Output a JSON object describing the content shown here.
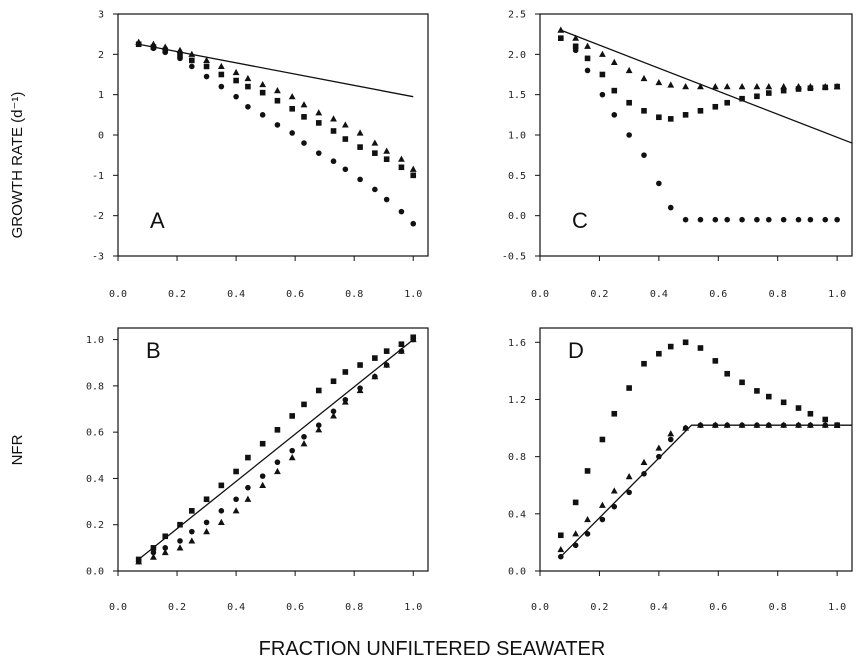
{
  "figure": {
    "ylabel_top": "GROWTH RATE (d⁻¹)",
    "ylabel_bottom": "NFR",
    "xlabel": "FRACTION UNFILTERED SEAWATER"
  },
  "chart_data": [
    {
      "type": "scatter",
      "panel": "A",
      "label": "A",
      "xlim": [
        0.0,
        1.05
      ],
      "ylim": [
        -3.0,
        3.0
      ],
      "xticks": [
        "0.0",
        "0.2",
        "0.4",
        "0.6",
        "0.8",
        "1.0"
      ],
      "xtick_values": [
        0.0,
        0.2,
        0.4,
        0.6,
        0.8,
        1.0
      ],
      "yticks": [
        "3",
        "2",
        "1",
        "0",
        "-1",
        "-2",
        "-3"
      ],
      "ytick_values": [
        3,
        2,
        1,
        0,
        -1,
        -2,
        -3
      ],
      "line": {
        "x": [
          0.07,
          1.0
        ],
        "y": [
          2.25,
          0.95
        ]
      },
      "series": [
        {
          "marker": "circle",
          "x": [
            0.07,
            0.12,
            0.16,
            0.21,
            0.25,
            0.3,
            0.35,
            0.4,
            0.44,
            0.49,
            0.54,
            0.59,
            0.63,
            0.68,
            0.73,
            0.77,
            0.82,
            0.87,
            0.91,
            0.96,
            1.0
          ],
          "y": [
            2.25,
            2.15,
            2.05,
            1.9,
            1.7,
            1.45,
            1.2,
            0.95,
            0.7,
            0.5,
            0.25,
            0.05,
            -0.2,
            -0.45,
            -0.65,
            -0.85,
            -1.1,
            -1.35,
            -1.6,
            -1.9,
            -2.2
          ]
        },
        {
          "marker": "square",
          "x": [
            0.07,
            0.12,
            0.16,
            0.21,
            0.25,
            0.3,
            0.35,
            0.4,
            0.44,
            0.49,
            0.54,
            0.59,
            0.63,
            0.68,
            0.73,
            0.77,
            0.82,
            0.87,
            0.91,
            0.96,
            1.0
          ],
          "y": [
            2.25,
            2.18,
            2.1,
            1.98,
            1.85,
            1.7,
            1.5,
            1.35,
            1.2,
            1.05,
            0.85,
            0.65,
            0.45,
            0.3,
            0.1,
            -0.1,
            -0.3,
            -0.45,
            -0.6,
            -0.8,
            -1.0
          ]
        },
        {
          "marker": "triangle",
          "x": [
            0.07,
            0.12,
            0.16,
            0.21,
            0.25,
            0.3,
            0.35,
            0.4,
            0.44,
            0.49,
            0.54,
            0.59,
            0.63,
            0.68,
            0.73,
            0.77,
            0.82,
            0.87,
            0.91,
            0.96,
            1.0
          ],
          "y": [
            2.3,
            2.25,
            2.18,
            2.1,
            2.0,
            1.85,
            1.7,
            1.55,
            1.4,
            1.25,
            1.1,
            0.95,
            0.75,
            0.55,
            0.4,
            0.25,
            0.05,
            -0.2,
            -0.4,
            -0.6,
            -0.85
          ]
        }
      ]
    },
    {
      "type": "scatter",
      "panel": "C",
      "label": "C",
      "xlim": [
        0.0,
        1.05
      ],
      "ylim": [
        -0.5,
        2.5
      ],
      "xticks": [
        "0.0",
        "0.2",
        "0.4",
        "0.6",
        "0.8",
        "1.0"
      ],
      "xtick_values": [
        0.0,
        0.2,
        0.4,
        0.6,
        0.8,
        1.0
      ],
      "yticks": [
        "2.5",
        "2.0",
        "1.5",
        "1.0",
        "0.5",
        "0.0",
        "-0.5"
      ],
      "ytick_values": [
        2.5,
        2.0,
        1.5,
        1.0,
        0.5,
        0.0,
        -0.5
      ],
      "line": {
        "x": [
          0.07,
          1.05
        ],
        "y": [
          2.3,
          0.9
        ]
      },
      "series": [
        {
          "marker": "circle",
          "x": [
            0.07,
            0.12,
            0.16,
            0.21,
            0.25,
            0.3,
            0.35,
            0.4,
            0.44,
            0.49,
            0.54,
            0.59,
            0.63,
            0.68,
            0.73,
            0.77,
            0.82,
            0.87,
            0.91,
            0.96,
            1.0
          ],
          "y": [
            2.2,
            2.05,
            1.8,
            1.5,
            1.25,
            1.0,
            0.75,
            0.4,
            0.1,
            -0.05,
            -0.05,
            -0.05,
            -0.05,
            -0.05,
            -0.05,
            -0.05,
            -0.05,
            -0.05,
            -0.05,
            -0.05,
            -0.05
          ]
        },
        {
          "marker": "square",
          "x": [
            0.07,
            0.12,
            0.16,
            0.21,
            0.25,
            0.3,
            0.35,
            0.4,
            0.44,
            0.49,
            0.54,
            0.59,
            0.63,
            0.68,
            0.73,
            0.77,
            0.82,
            0.87,
            0.91,
            0.96,
            1.0
          ],
          "y": [
            2.2,
            2.1,
            1.95,
            1.75,
            1.55,
            1.4,
            1.3,
            1.22,
            1.2,
            1.25,
            1.3,
            1.35,
            1.4,
            1.45,
            1.48,
            1.52,
            1.55,
            1.57,
            1.58,
            1.59,
            1.6
          ]
        },
        {
          "marker": "triangle",
          "x": [
            0.07,
            0.12,
            0.16,
            0.21,
            0.25,
            0.3,
            0.35,
            0.4,
            0.44,
            0.49,
            0.54,
            0.59,
            0.63,
            0.68,
            0.73,
            0.77,
            0.82,
            0.87,
            0.91,
            0.96,
            1.0
          ],
          "y": [
            2.3,
            2.2,
            2.1,
            2.0,
            1.9,
            1.8,
            1.7,
            1.65,
            1.62,
            1.6,
            1.6,
            1.6,
            1.6,
            1.6,
            1.6,
            1.6,
            1.6,
            1.6,
            1.6,
            1.6,
            1.6
          ]
        }
      ]
    },
    {
      "type": "scatter",
      "panel": "B",
      "label": "B",
      "xlim": [
        0.0,
        1.05
      ],
      "ylim": [
        0.0,
        1.05
      ],
      "xticks": [
        "0.0",
        "0.2",
        "0.4",
        "0.6",
        "0.8",
        "1.0"
      ],
      "xtick_values": [
        0.0,
        0.2,
        0.4,
        0.6,
        0.8,
        1.0
      ],
      "yticks": [
        "1.0",
        "0.8",
        "0.6",
        "0.4",
        "0.2",
        "0.0"
      ],
      "ytick_values": [
        1.0,
        0.8,
        0.6,
        0.4,
        0.2,
        0.0
      ],
      "line": {
        "x": [
          0.07,
          1.0
        ],
        "y": [
          0.05,
          1.0
        ]
      },
      "series": [
        {
          "marker": "circle",
          "x": [
            0.07,
            0.12,
            0.16,
            0.21,
            0.25,
            0.3,
            0.35,
            0.4,
            0.44,
            0.49,
            0.54,
            0.59,
            0.63,
            0.68,
            0.73,
            0.77,
            0.82,
            0.87,
            0.91,
            0.96,
            1.0
          ],
          "y": [
            0.04,
            0.08,
            0.1,
            0.13,
            0.17,
            0.21,
            0.26,
            0.31,
            0.36,
            0.41,
            0.47,
            0.52,
            0.58,
            0.63,
            0.69,
            0.74,
            0.79,
            0.84,
            0.89,
            0.95,
            1.0
          ]
        },
        {
          "marker": "square",
          "x": [
            0.07,
            0.12,
            0.16,
            0.21,
            0.25,
            0.3,
            0.35,
            0.4,
            0.44,
            0.49,
            0.54,
            0.59,
            0.63,
            0.68,
            0.73,
            0.77,
            0.82,
            0.87,
            0.91,
            0.96,
            1.0
          ],
          "y": [
            0.05,
            0.1,
            0.15,
            0.2,
            0.26,
            0.31,
            0.37,
            0.43,
            0.49,
            0.55,
            0.61,
            0.67,
            0.72,
            0.78,
            0.82,
            0.86,
            0.89,
            0.92,
            0.95,
            0.98,
            1.01
          ]
        },
        {
          "marker": "triangle",
          "x": [
            0.07,
            0.12,
            0.16,
            0.21,
            0.25,
            0.3,
            0.35,
            0.4,
            0.44,
            0.49,
            0.54,
            0.59,
            0.63,
            0.68,
            0.73,
            0.77,
            0.82,
            0.87,
            0.91,
            0.96,
            1.0
          ],
          "y": [
            0.04,
            0.06,
            0.08,
            0.1,
            0.13,
            0.17,
            0.21,
            0.26,
            0.31,
            0.37,
            0.43,
            0.49,
            0.55,
            0.61,
            0.67,
            0.73,
            0.78,
            0.84,
            0.89,
            0.95,
            1.0
          ]
        }
      ]
    },
    {
      "type": "scatter",
      "panel": "D",
      "label": "D",
      "xlim": [
        0.0,
        1.05
      ],
      "ylim": [
        0.0,
        1.7
      ],
      "xticks": [
        "0.0",
        "0.2",
        "0.4",
        "0.6",
        "0.8",
        "1.0"
      ],
      "xtick_values": [
        0.0,
        0.2,
        0.4,
        0.6,
        0.8,
        1.0
      ],
      "yticks": [
        "1.6",
        "1.2",
        "0.8",
        "0.4",
        "0.0"
      ],
      "ytick_values": [
        1.6,
        1.2,
        0.8,
        0.4,
        0.0
      ],
      "line": {
        "x": [
          0.07,
          0.51,
          1.05
        ],
        "y": [
          0.1,
          1.02,
          1.02
        ]
      },
      "series": [
        {
          "marker": "circle",
          "x": [
            0.07,
            0.12,
            0.16,
            0.21,
            0.25,
            0.3,
            0.35,
            0.4,
            0.44,
            0.49,
            0.54,
            0.59,
            0.63,
            0.68,
            0.73,
            0.77,
            0.82,
            0.87,
            0.91,
            0.96,
            1.0
          ],
          "y": [
            0.1,
            0.18,
            0.26,
            0.36,
            0.45,
            0.55,
            0.68,
            0.8,
            0.92,
            1.0,
            1.02,
            1.02,
            1.02,
            1.02,
            1.02,
            1.02,
            1.02,
            1.02,
            1.02,
            1.02,
            1.02
          ]
        },
        {
          "marker": "square",
          "x": [
            0.07,
            0.12,
            0.16,
            0.21,
            0.25,
            0.3,
            0.35,
            0.4,
            0.44,
            0.49,
            0.54,
            0.59,
            0.63,
            0.68,
            0.73,
            0.77,
            0.82,
            0.87,
            0.91,
            0.96,
            1.0
          ],
          "y": [
            0.25,
            0.48,
            0.7,
            0.92,
            1.1,
            1.28,
            1.45,
            1.52,
            1.57,
            1.6,
            1.56,
            1.47,
            1.38,
            1.32,
            1.26,
            1.22,
            1.18,
            1.14,
            1.1,
            1.06,
            1.02
          ]
        },
        {
          "marker": "triangle",
          "x": [
            0.07,
            0.12,
            0.16,
            0.21,
            0.25,
            0.3,
            0.35,
            0.4,
            0.44,
            0.49,
            0.54,
            0.59,
            0.63,
            0.68,
            0.73,
            0.77,
            0.82,
            0.87,
            0.91,
            0.96,
            1.0
          ],
          "y": [
            0.15,
            0.26,
            0.36,
            0.46,
            0.56,
            0.66,
            0.76,
            0.86,
            0.96,
            1.0,
            1.02,
            1.02,
            1.02,
            1.02,
            1.02,
            1.02,
            1.02,
            1.02,
            1.02,
            1.02,
            1.02
          ]
        }
      ]
    }
  ]
}
